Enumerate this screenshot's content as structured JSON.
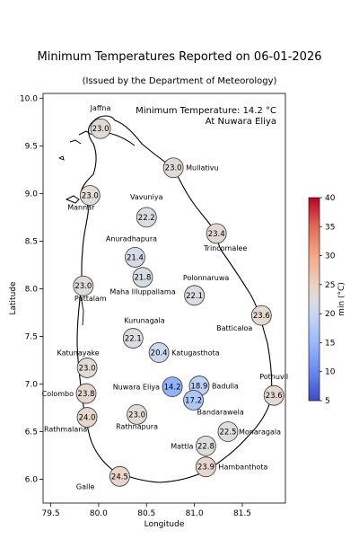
{
  "title": "Minimum Temperatures Reported on 06-01-2026",
  "subtitle": "(Issued by the Department of Meteorology)",
  "annotation": {
    "line1": "Minimum Temperature: 14.2 °C",
    "line2": "At Nuwara Eliya"
  },
  "chart_data": {
    "type": "scatter",
    "xlabel": "Longitude",
    "ylabel": "Latitude",
    "xlim": [
      79.42,
      81.95
    ],
    "ylim": [
      5.75,
      10.05
    ],
    "xticks": [
      "79.5",
      "80.0",
      "80.5",
      "81.0",
      "81.5"
    ],
    "xtick_values": [
      79.5,
      80.0,
      80.5,
      81.0,
      81.5
    ],
    "yticks": [
      "6.0",
      "6.5",
      "7.0",
      "7.5",
      "8.0",
      "8.5",
      "9.0",
      "9.5",
      "10.0"
    ],
    "ytick_values": [
      6.0,
      6.5,
      7.0,
      7.5,
      8.0,
      8.5,
      9.0,
      9.5,
      10.0
    ],
    "grid": false,
    "colorscale": "coolwarm",
    "colorbar": {
      "label": "min (°C)",
      "range": [
        5,
        40
      ],
      "ticks": [
        "5",
        "10",
        "15",
        "20",
        "25",
        "30",
        "35",
        "40"
      ],
      "tick_values": [
        5,
        10,
        15,
        20,
        25,
        30,
        35,
        40
      ],
      "low_color": "#3b4cc0",
      "mid_color": "#dddddd",
      "high_color": "#b40426"
    },
    "stations": [
      {
        "name": "Jaffna",
        "lon": 80.02,
        "lat": 9.68,
        "value": 23.0,
        "text": "23.0"
      },
      {
        "name": "Mullativu",
        "lon": 80.78,
        "lat": 9.27,
        "value": 23.0,
        "text": "23.0"
      },
      {
        "name": "Mannar",
        "lon": 79.91,
        "lat": 8.98,
        "value": 23.0,
        "text": "23.0"
      },
      {
        "name": "Vavuniya",
        "lon": 80.5,
        "lat": 8.75,
        "value": 22.2,
        "text": "22.2"
      },
      {
        "name": "Trincomalee",
        "lon": 81.23,
        "lat": 8.58,
        "value": 23.4,
        "text": "23.4"
      },
      {
        "name": "Anuradhapura",
        "lon": 80.38,
        "lat": 8.33,
        "value": 21.4,
        "text": "21.4"
      },
      {
        "name": "Maha Illuppallama",
        "lon": 80.46,
        "lat": 8.12,
        "value": 21.8,
        "text": "21.8"
      },
      {
        "name": "Puttalam",
        "lon": 79.84,
        "lat": 8.03,
        "value": 23.0,
        "text": "23.0"
      },
      {
        "name": "Polonnaruwa",
        "lon": 81.0,
        "lat": 7.93,
        "value": 22.1,
        "text": "22.1"
      },
      {
        "name": "Batticaloa",
        "lon": 81.7,
        "lat": 7.72,
        "value": 23.6,
        "text": "23.6"
      },
      {
        "name": "Kurunagala",
        "lon": 80.36,
        "lat": 7.48,
        "value": 22.1,
        "text": "22.1"
      },
      {
        "name": "Katugasthota",
        "lon": 80.63,
        "lat": 7.33,
        "value": 20.4,
        "text": "20.4"
      },
      {
        "name": "Katunayake",
        "lon": 79.88,
        "lat": 7.17,
        "value": 23.0,
        "text": "23.0"
      },
      {
        "name": "Nuwara Eliya",
        "lon": 80.77,
        "lat": 6.97,
        "value": 14.2,
        "text": "14.2"
      },
      {
        "name": "Badulla",
        "lon": 81.05,
        "lat": 6.98,
        "value": 18.9,
        "text": "18.9"
      },
      {
        "name": "Pothuvil",
        "lon": 81.83,
        "lat": 6.88,
        "value": 23.6,
        "text": "23.6"
      },
      {
        "name": "Colombo",
        "lon": 79.87,
        "lat": 6.9,
        "value": 23.8,
        "text": "23.8"
      },
      {
        "name": "Bandarawela",
        "lon": 80.99,
        "lat": 6.83,
        "value": 17.2,
        "text": "17.2"
      },
      {
        "name": "Rathnapura",
        "lon": 80.4,
        "lat": 6.68,
        "value": 23.0,
        "text": "23.0"
      },
      {
        "name": "Rathmalana",
        "lon": 79.88,
        "lat": 6.65,
        "value": 24.0,
        "text": "24.0"
      },
      {
        "name": "Monaragala",
        "lon": 81.35,
        "lat": 6.5,
        "value": 22.5,
        "text": "22.5"
      },
      {
        "name": "Mattla",
        "lon": 81.12,
        "lat": 6.35,
        "value": 22.8,
        "text": "22.8"
      },
      {
        "name": "Hambanthota",
        "lon": 81.12,
        "lat": 6.13,
        "value": 23.9,
        "text": "23.9"
      },
      {
        "name": "Galle",
        "lon": 80.22,
        "lat": 6.03,
        "value": 24.5,
        "text": "24.5"
      }
    ]
  }
}
